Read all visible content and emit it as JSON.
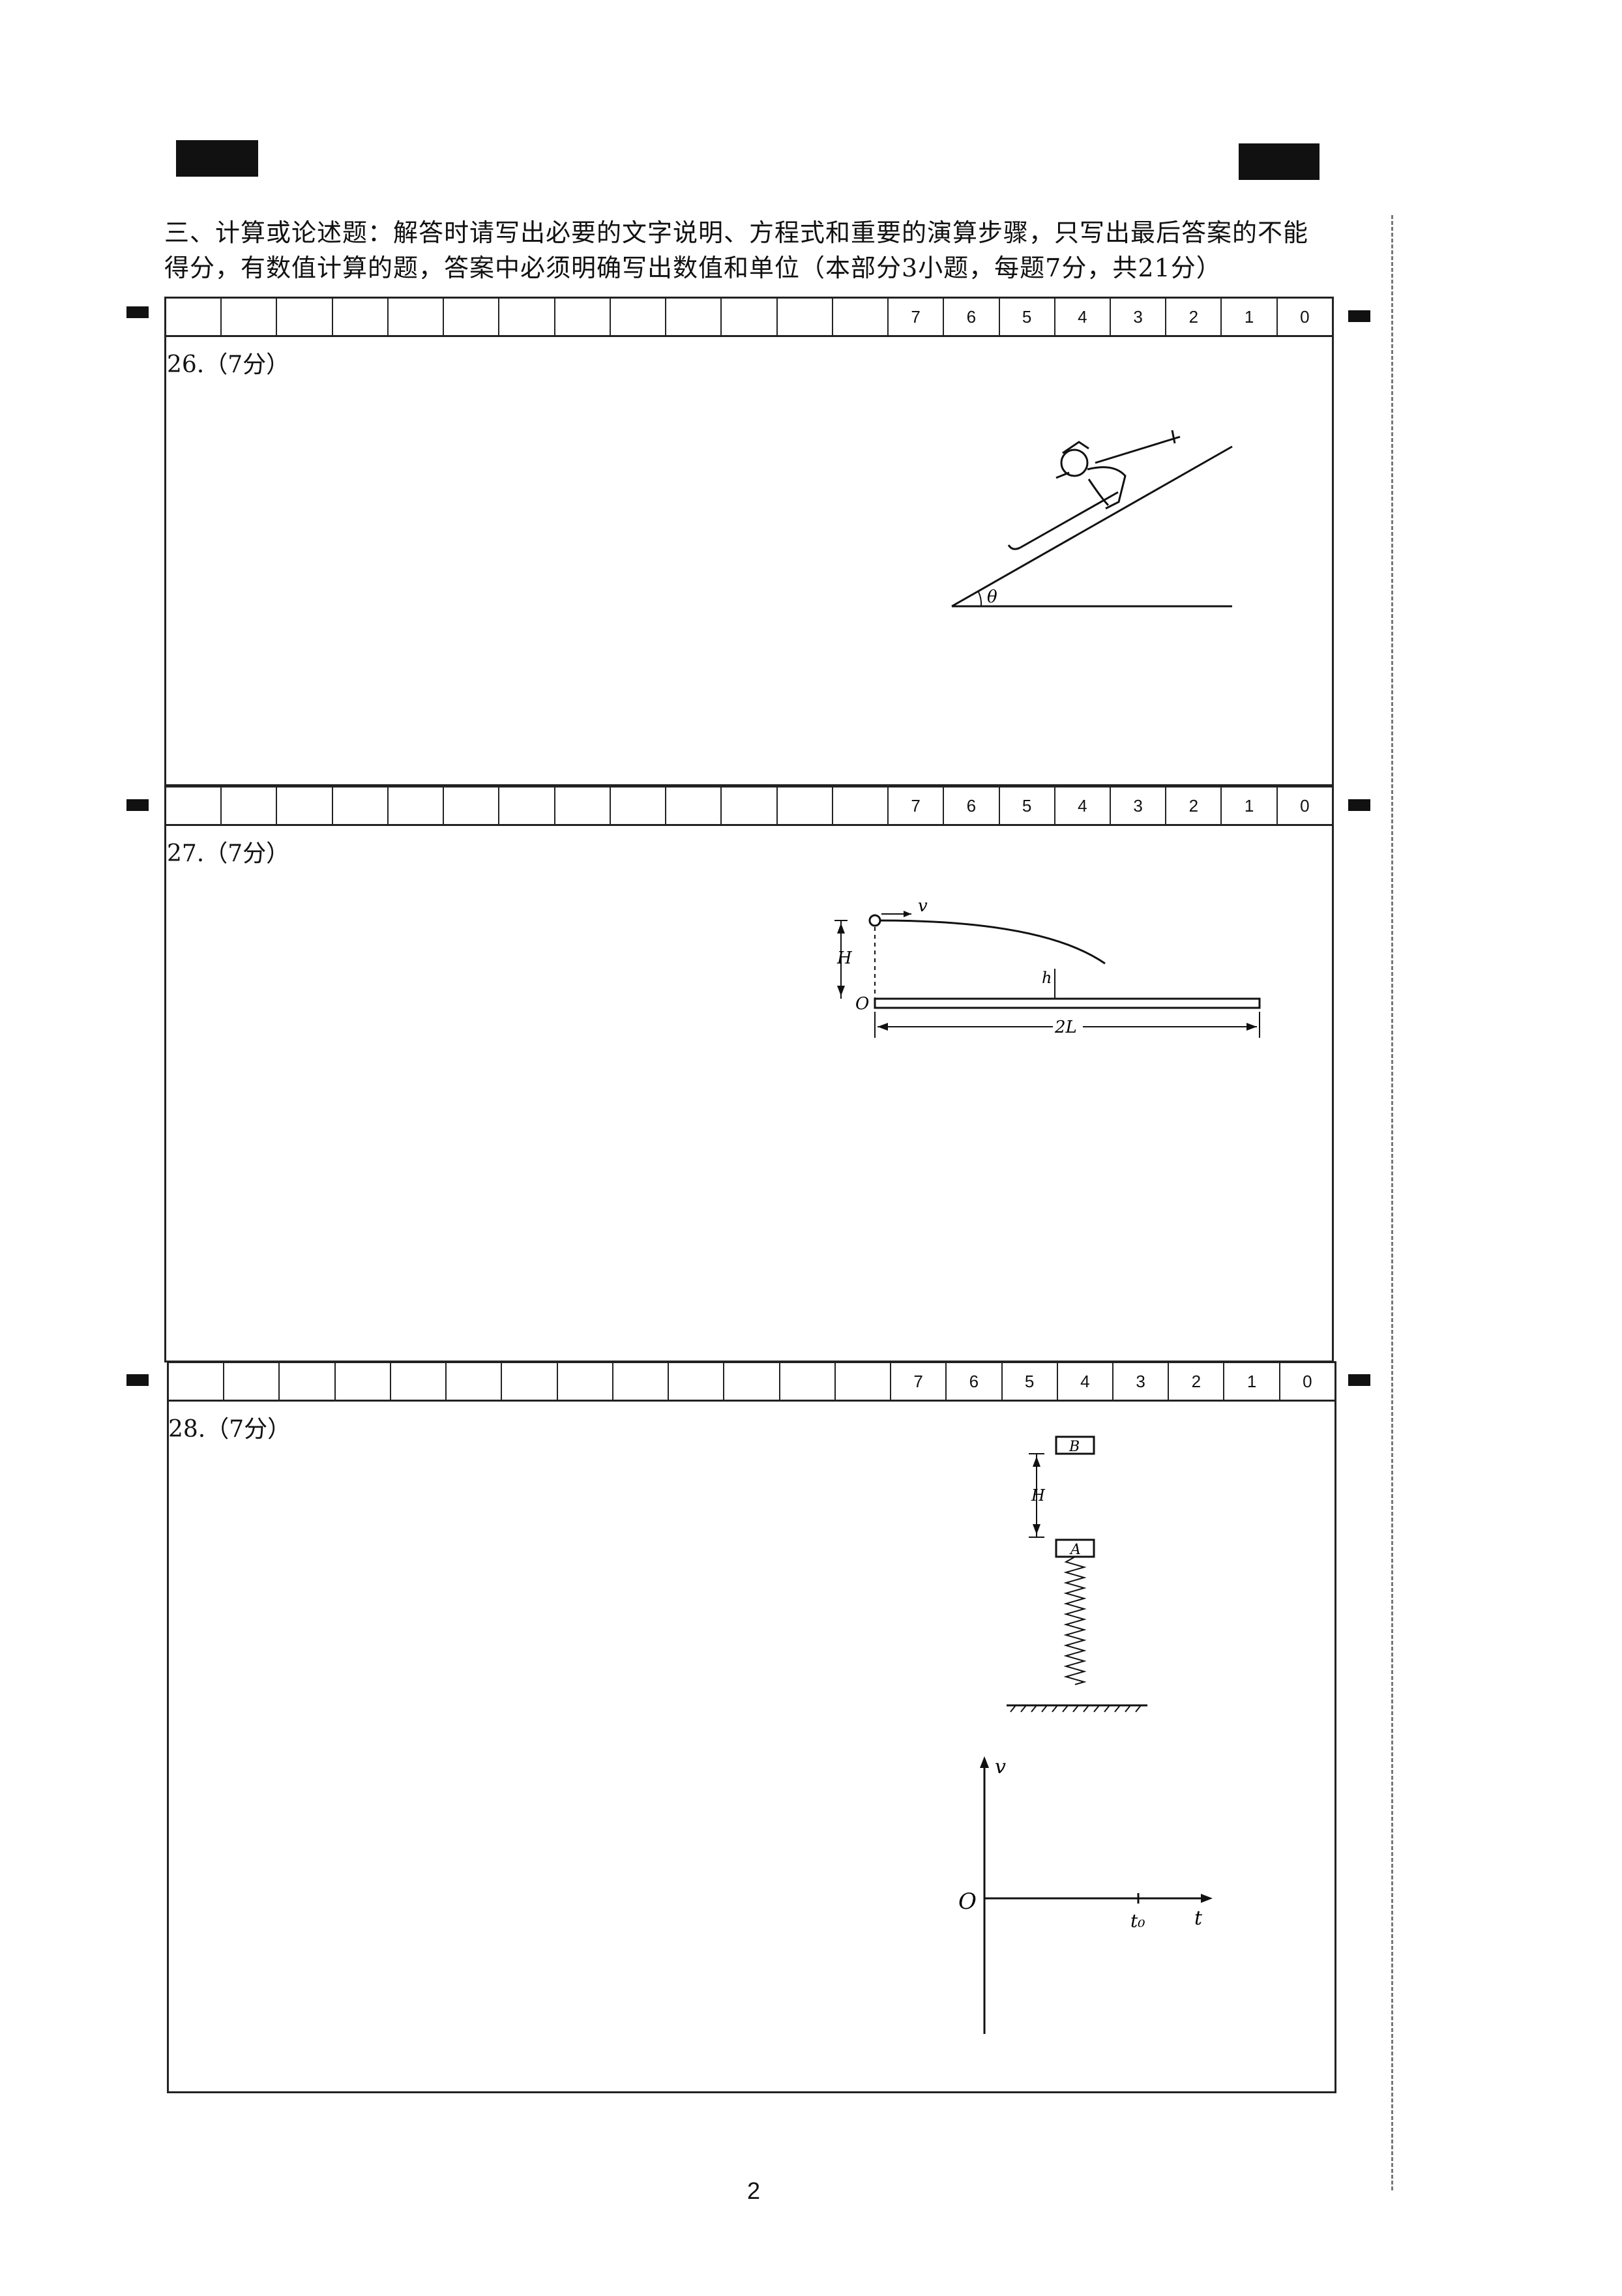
{
  "section": {
    "instructions_line1": "三、计算或论述题：解答时请写出必要的文字说明、方程式和重要的演算步骤，只写出最后答案的不能",
    "instructions_line2": "得分，有数值计算的题，答案中必须明确写出数值和单位（本部分3小题，每题7分，共21分）"
  },
  "score_row": {
    "values": [
      "7",
      "6",
      "5",
      "4",
      "3",
      "2",
      "1",
      "0"
    ]
  },
  "questions": [
    {
      "label": "26.（7分）",
      "figure": {
        "angle_label": "θ"
      }
    },
    {
      "label": "27.（7分）",
      "figure": {
        "v": "v",
        "H": "H",
        "h": "h",
        "O": "O",
        "L": "2L"
      }
    },
    {
      "label": "28.（7分）",
      "figure": {
        "B": "B",
        "A": "A",
        "H": "H",
        "v_axis": "v",
        "t_axis": "t",
        "origin": "O",
        "t0": "t₀"
      }
    }
  ],
  "page_number": "2"
}
